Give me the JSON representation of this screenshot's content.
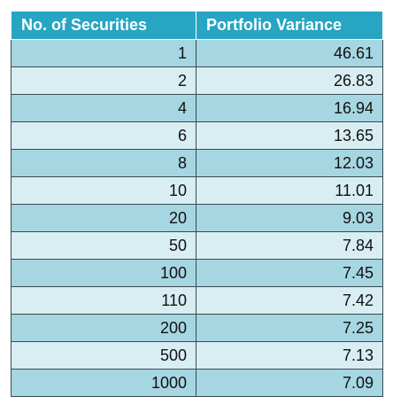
{
  "colors": {
    "header": "#27a5c3",
    "row_dark": "#a6d6e2",
    "row_light": "#d9eef3"
  },
  "chart_data": {
    "type": "table",
    "columns": [
      "No. of Securities",
      "Portfolio Variance"
    ],
    "rows": [
      [
        "1",
        "46.61"
      ],
      [
        "2",
        "26.83"
      ],
      [
        "4",
        "16.94"
      ],
      [
        "6",
        "13.65"
      ],
      [
        "8",
        "12.03"
      ],
      [
        "10",
        "11.01"
      ],
      [
        "20",
        "9.03"
      ],
      [
        "50",
        "7.84"
      ],
      [
        "100",
        "7.45"
      ],
      [
        "110",
        "7.42"
      ],
      [
        "200",
        "7.25"
      ],
      [
        "500",
        "7.13"
      ],
      [
        "1000",
        "7.09"
      ]
    ]
  }
}
